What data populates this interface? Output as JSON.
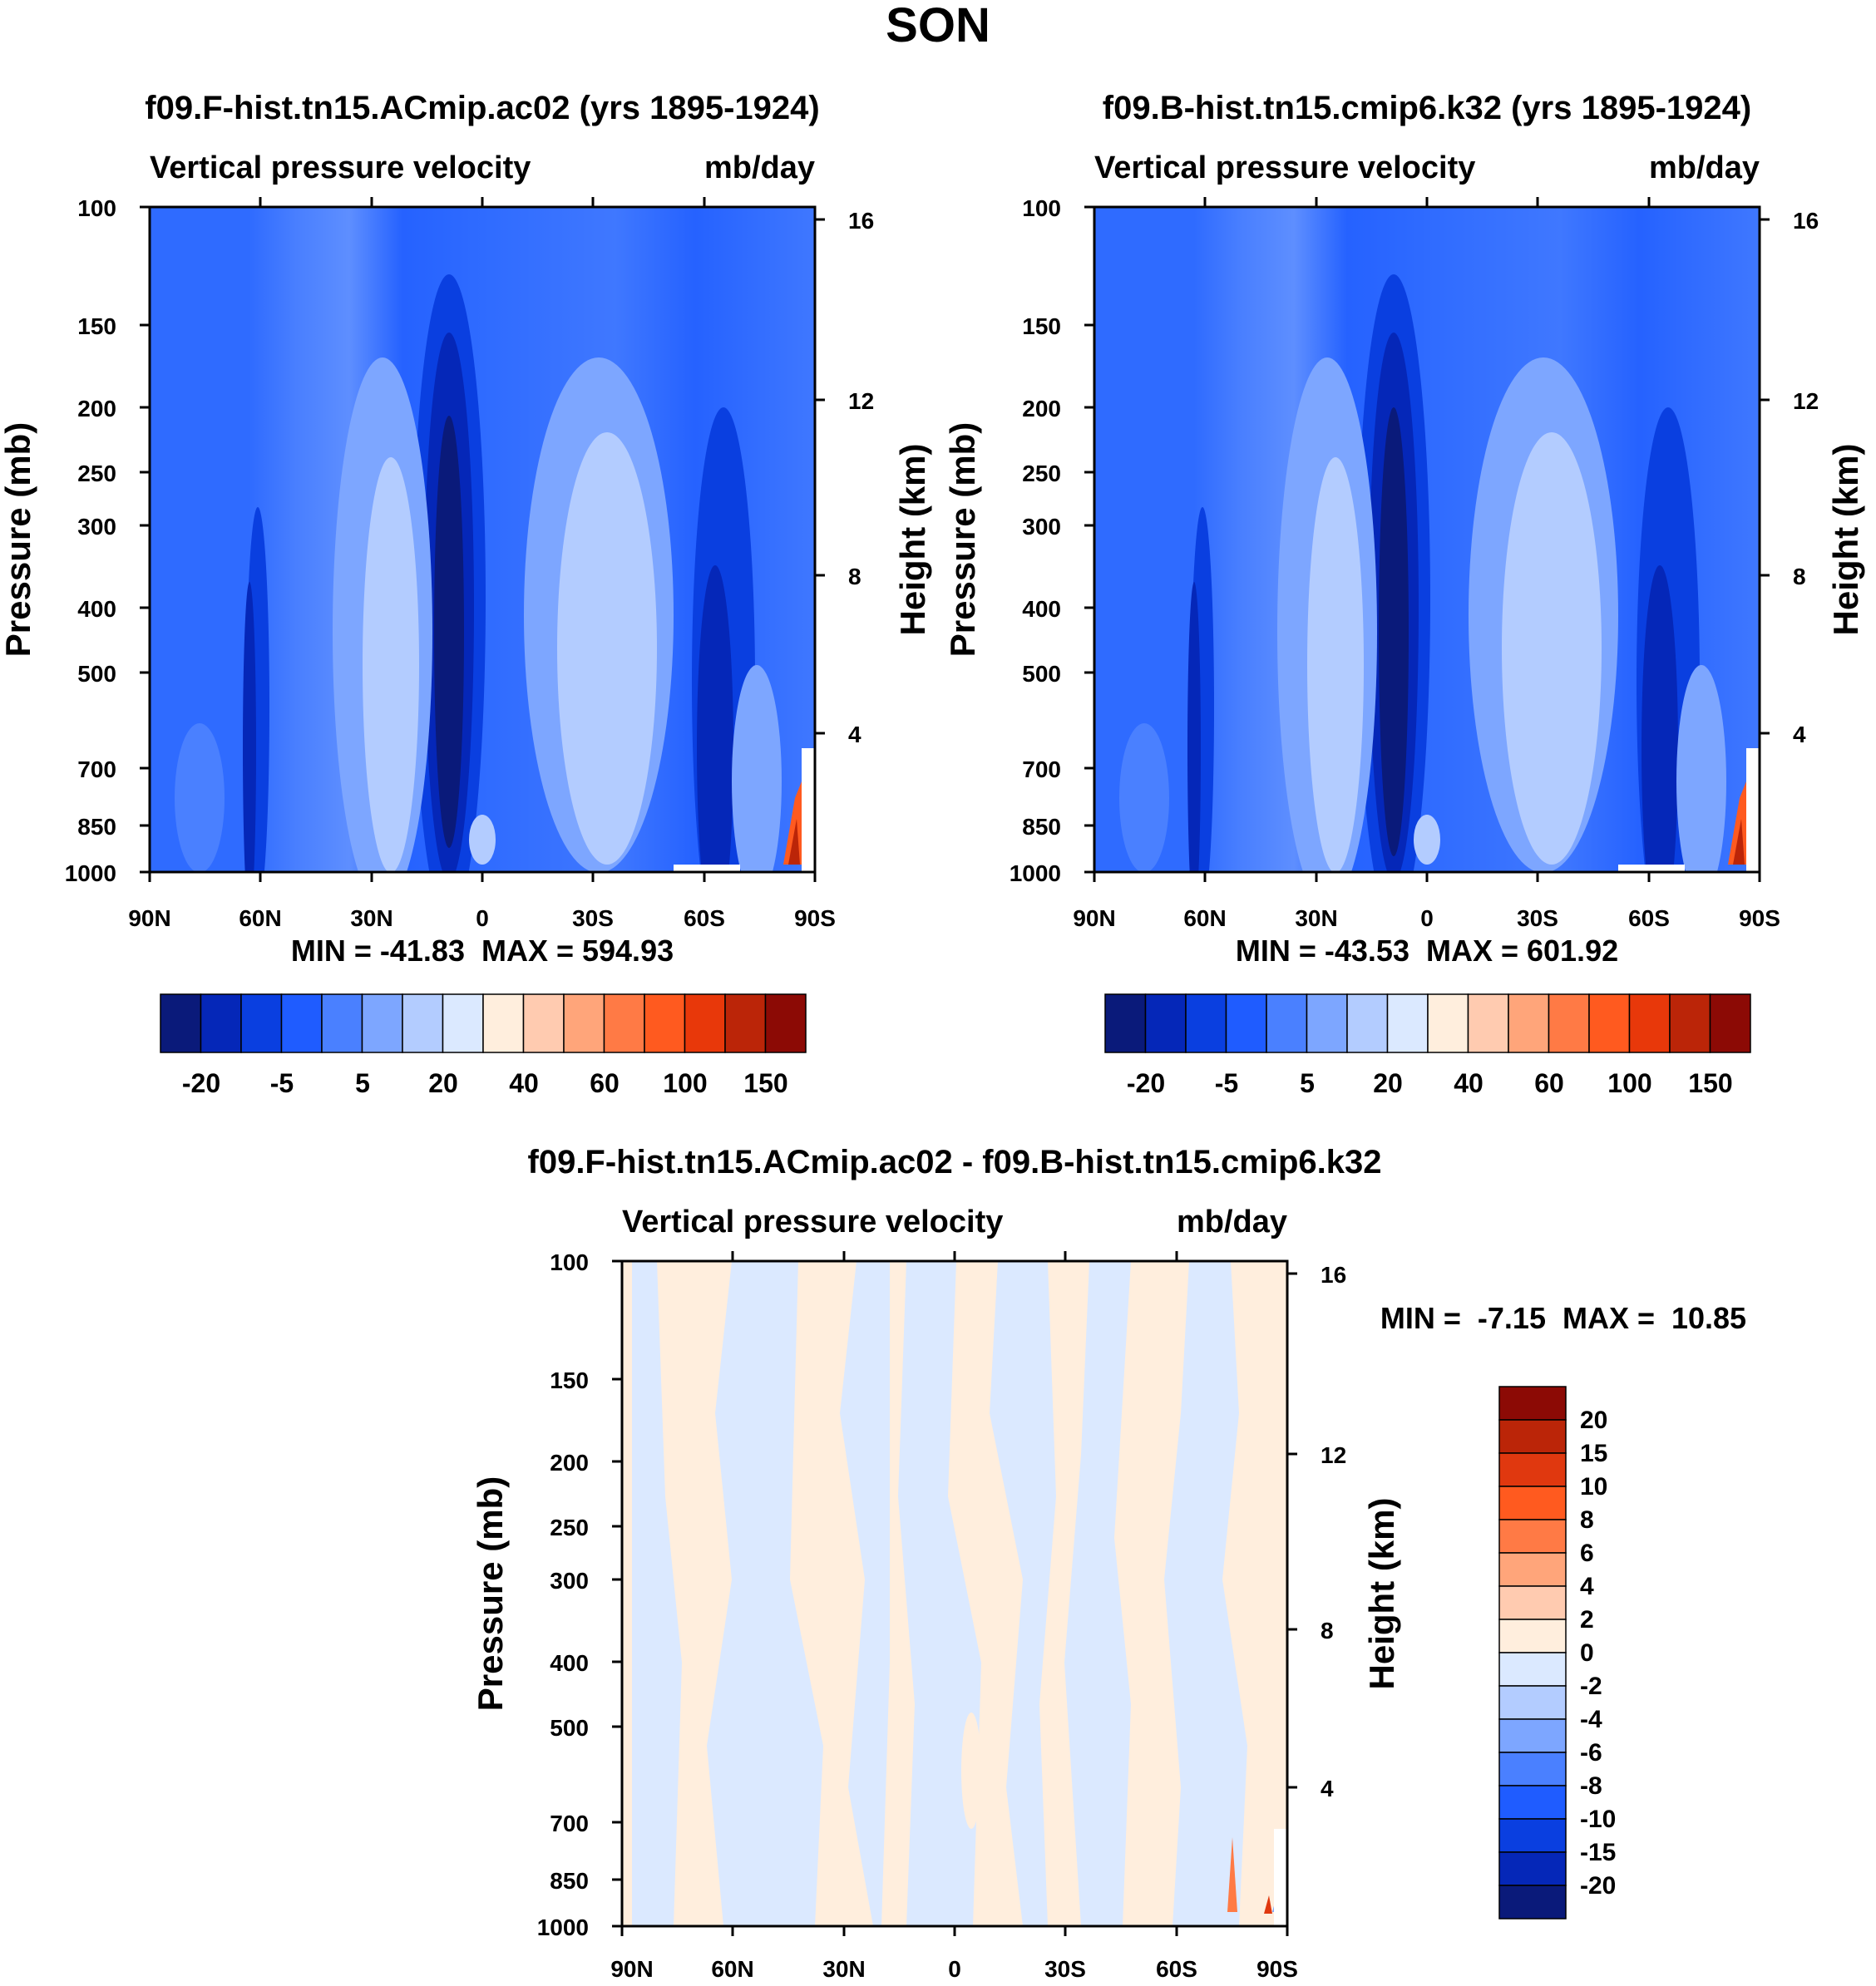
{
  "page_title": "SON",
  "chart_data": [
    {
      "type": "heatmap",
      "title": "f09.F-hist.tn15.ACmip.ac02 (yrs 1895-1924)",
      "subtitle_left": "Vertical pressure velocity",
      "subtitle_right": "mb/day",
      "ylabel": "Pressure (mb)",
      "ylabel_right": "Height (km)",
      "x_ticks": [
        "90N",
        "60N",
        "30N",
        "0",
        "30S",
        "60S",
        "90S"
      ],
      "y_ticks": [
        "100",
        "150",
        "200",
        "250",
        "300",
        "400",
        "500",
        "700",
        "850",
        "1000"
      ],
      "y_ticks_right": [
        "16",
        "12",
        "8",
        "4"
      ],
      "stats": "MIN = -41.83  MAX = 594.93",
      "colorbar_labels": [
        "-20",
        "-5",
        "5",
        "20",
        "40",
        "60",
        "100",
        "150"
      ]
    },
    {
      "type": "heatmap",
      "title": "f09.B-hist.tn15.cmip6.k32 (yrs 1895-1924)",
      "subtitle_left": "Vertical pressure velocity",
      "subtitle_right": "mb/day",
      "ylabel": "Pressure (mb)",
      "ylabel_right": "Height (km)",
      "x_ticks": [
        "90N",
        "60N",
        "30N",
        "0",
        "30S",
        "60S",
        "90S"
      ],
      "y_ticks": [
        "100",
        "150",
        "200",
        "250",
        "300",
        "400",
        "500",
        "700",
        "850",
        "1000"
      ],
      "y_ticks_right": [
        "16",
        "12",
        "8",
        "4"
      ],
      "stats": "MIN = -43.53  MAX = 601.92",
      "colorbar_labels": [
        "-20",
        "-5",
        "5",
        "20",
        "40",
        "60",
        "100",
        "150"
      ]
    },
    {
      "type": "heatmap",
      "title": "f09.F-hist.tn15.ACmip.ac02 - f09.B-hist.tn15.cmip6.k32",
      "subtitle_left": "Vertical pressure velocity",
      "subtitle_right": "mb/day",
      "ylabel": "Pressure (mb)",
      "ylabel_right": "Height (km)",
      "x_ticks": [
        "90N",
        "60N",
        "30N",
        "0",
        "30S",
        "60S",
        "90S"
      ],
      "y_ticks": [
        "100",
        "150",
        "200",
        "250",
        "300",
        "400",
        "500",
        "700",
        "850",
        "1000"
      ],
      "y_ticks_right": [
        "16",
        "12",
        "8",
        "4"
      ],
      "stats": "MIN =  -7.15  MAX =  10.85",
      "colorbar_labels": [
        "20",
        "15",
        "10",
        "8",
        "6",
        "4",
        "2",
        "0",
        "-2",
        "-4",
        "-6",
        "-8",
        "-10",
        "-15",
        "-20"
      ]
    }
  ],
  "colors": {
    "main_scale": [
      "#0a1a7a",
      "#0527b8",
      "#0a3fe0",
      "#1f5cff",
      "#4a80ff",
      "#7da6ff",
      "#b3ccff",
      "#dbe9ff",
      "#ffeedd",
      "#ffcbb0",
      "#ffa57a",
      "#ff7a45",
      "#ff5a1f",
      "#e8380a",
      "#bb2508",
      "#8c0a05"
    ],
    "diff_scale": [
      "#8c0a05",
      "#bb2508",
      "#e0380f",
      "#ff5a1f",
      "#ff7a45",
      "#ffa57a",
      "#ffcbb0",
      "#ffeedd",
      "#dbe9ff",
      "#b3ccff",
      "#7da6ff",
      "#4a80ff",
      "#1f5cff",
      "#0a3fe0",
      "#0527b8",
      "#0a1a7a"
    ]
  }
}
